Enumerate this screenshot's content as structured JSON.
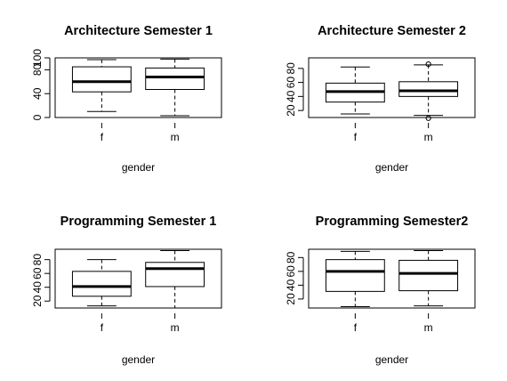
{
  "chart_data": [
    {
      "type": "box",
      "title": "Architecture Semester 1",
      "xlabel": "gender",
      "ylabel": "",
      "ylim": [
        0,
        100
      ],
      "yticks": [
        0,
        40,
        80,
        100
      ],
      "categories": [
        "f",
        "m"
      ],
      "boxes": [
        {
          "name": "f",
          "lower_whisker": 10,
          "q1": 43,
          "median": 60,
          "q3": 85,
          "upper_whisker": 97,
          "outliers": []
        },
        {
          "name": "m",
          "lower_whisker": 3,
          "q1": 47,
          "median": 68,
          "q3": 83,
          "upper_whisker": 98,
          "outliers": []
        }
      ]
    },
    {
      "type": "box",
      "title": "Architecture Semester 2",
      "xlabel": "gender",
      "ylabel": "",
      "ylim": [
        10,
        95
      ],
      "yticks": [
        20,
        40,
        60,
        80
      ],
      "categories": [
        "f",
        "m"
      ],
      "boxes": [
        {
          "name": "f",
          "lower_whisker": 15,
          "q1": 32,
          "median": 47,
          "q3": 59,
          "upper_whisker": 82,
          "outliers": []
        },
        {
          "name": "m",
          "lower_whisker": 13,
          "q1": 40,
          "median": 48,
          "q3": 61,
          "upper_whisker": 85,
          "outliers": [
            9,
            86
          ]
        }
      ]
    },
    {
      "type": "box",
      "title": "Programming Semester 1",
      "xlabel": "gender",
      "ylabel": "",
      "ylim": [
        10,
        95
      ],
      "yticks": [
        20,
        40,
        60,
        80
      ],
      "categories": [
        "f",
        "m"
      ],
      "boxes": [
        {
          "name": "f",
          "lower_whisker": 13,
          "q1": 27,
          "median": 41,
          "q3": 63,
          "upper_whisker": 80,
          "outliers": []
        },
        {
          "name": "m",
          "lower_whisker": 10,
          "q1": 41,
          "median": 67,
          "q3": 76,
          "upper_whisker": 93,
          "outliers": []
        }
      ]
    },
    {
      "type": "box",
      "title": "Programming Semester2",
      "xlabel": "gender",
      "ylabel": "",
      "ylim": [
        7,
        92
      ],
      "yticks": [
        20,
        40,
        60,
        80
      ],
      "categories": [
        "f",
        "m"
      ],
      "boxes": [
        {
          "name": "f",
          "lower_whisker": 9,
          "q1": 31,
          "median": 60,
          "q3": 77,
          "upper_whisker": 89,
          "outliers": []
        },
        {
          "name": "m",
          "lower_whisker": 10,
          "q1": 32,
          "median": 57,
          "q3": 76,
          "upper_whisker": 90,
          "outliers": []
        }
      ]
    }
  ]
}
